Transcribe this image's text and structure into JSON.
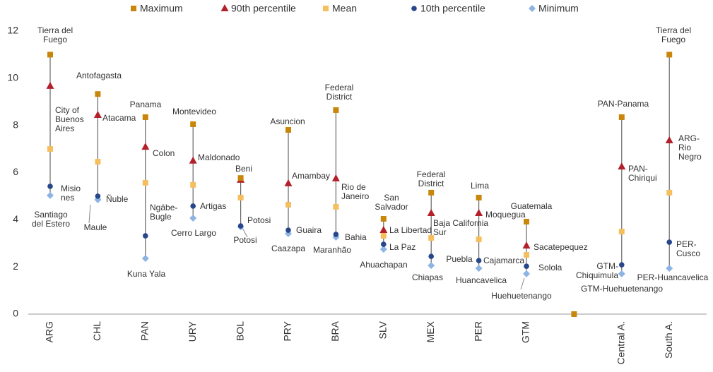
{
  "chart_data": {
    "type": "range",
    "categories": [
      "ARG",
      "CHL",
      "PAN",
      "URY",
      "BOL",
      "PRY",
      "BRA",
      "SLV",
      "MEX",
      "PER",
      "GTM",
      null,
      "Central A.",
      "South A."
    ],
    "series": [
      {
        "name": "Maximum",
        "color": "#c8860a",
        "marker": "square",
        "values": [
          11.0,
          9.33,
          8.35,
          8.05,
          5.77,
          7.81,
          8.65,
          4.04,
          5.15,
          4.94,
          3.92,
          0,
          8.35,
          11.0
        ]
      },
      {
        "name": "90th percentile",
        "color": "#b3202a",
        "marker": "triangle",
        "values": [
          9.67,
          8.44,
          7.09,
          6.5,
          5.69,
          5.54,
          5.75,
          3.56,
          4.28,
          4.28,
          2.9,
          null,
          6.25,
          7.36
        ]
      },
      {
        "name": "Mean",
        "color": "#f6bf5e",
        "marker": "square",
        "values": [
          7.0,
          6.46,
          5.57,
          5.48,
          4.94,
          4.64,
          4.55,
          3.32,
          3.23,
          3.17,
          2.51,
          null,
          3.5,
          5.15
        ]
      },
      {
        "name": "10th percentile",
        "color": "#27478a",
        "marker": "circle",
        "values": [
          5.42,
          5.0,
          3.32,
          4.58,
          3.74,
          3.56,
          3.38,
          2.96,
          2.45,
          2.27,
          2.03,
          null,
          2.09,
          3.05
        ]
      },
      {
        "name": "Minimum",
        "color": "#8db4e2",
        "marker": "diamond",
        "values": [
          5.03,
          4.85,
          2.36,
          4.07,
          3.7,
          3.41,
          3.26,
          2.75,
          2.06,
          1.94,
          1.71,
          null,
          1.71,
          1.94
        ]
      }
    ],
    "ylim": [
      0,
      12
    ],
    "yticks": [
      0,
      2,
      4,
      6,
      8,
      10,
      12
    ],
    "annotations": [
      "Tierra del\nFuego",
      "Antofagasta",
      "City of\nBuenos\nAires",
      "Atacama",
      "Misio\nnes",
      "Ñuble",
      "Santiago\ndel Estero",
      "Maule",
      "Panama",
      "Colon",
      "Ngäbe-\nBugle",
      "Kuna Yala",
      "Montevideo",
      "Maldonado",
      "Artigas",
      "Cerro Largo",
      "Beni",
      "Potosi",
      "Potosi",
      "Asuncion",
      "Amambay",
      "Guaira",
      "Caazapa",
      "Federal\nDistrict",
      "Rio de\nJaneiro",
      "Bahia",
      "Maranhão",
      "San\nSalvador",
      "La Libertad",
      "La Paz",
      "Ahuachapan",
      "Federal\nDistrict",
      "Baja California\nSur",
      "Chiapas",
      "Lima",
      "Moquegua",
      "Puebla",
      "Cajamarca",
      "Huancavelica",
      "Guatemala",
      "Sacatepequez",
      "Solola",
      "Huehuetenango",
      "PAN-Panama",
      "PAN-\nChiriqui",
      "GTM-\nChiquimula",
      "GTM-Huehuetenango",
      "Tierra del\nFuego",
      "ARG-\nRio\nNegro",
      "PER-\nCusco",
      "PER-Huancavelica"
    ]
  }
}
